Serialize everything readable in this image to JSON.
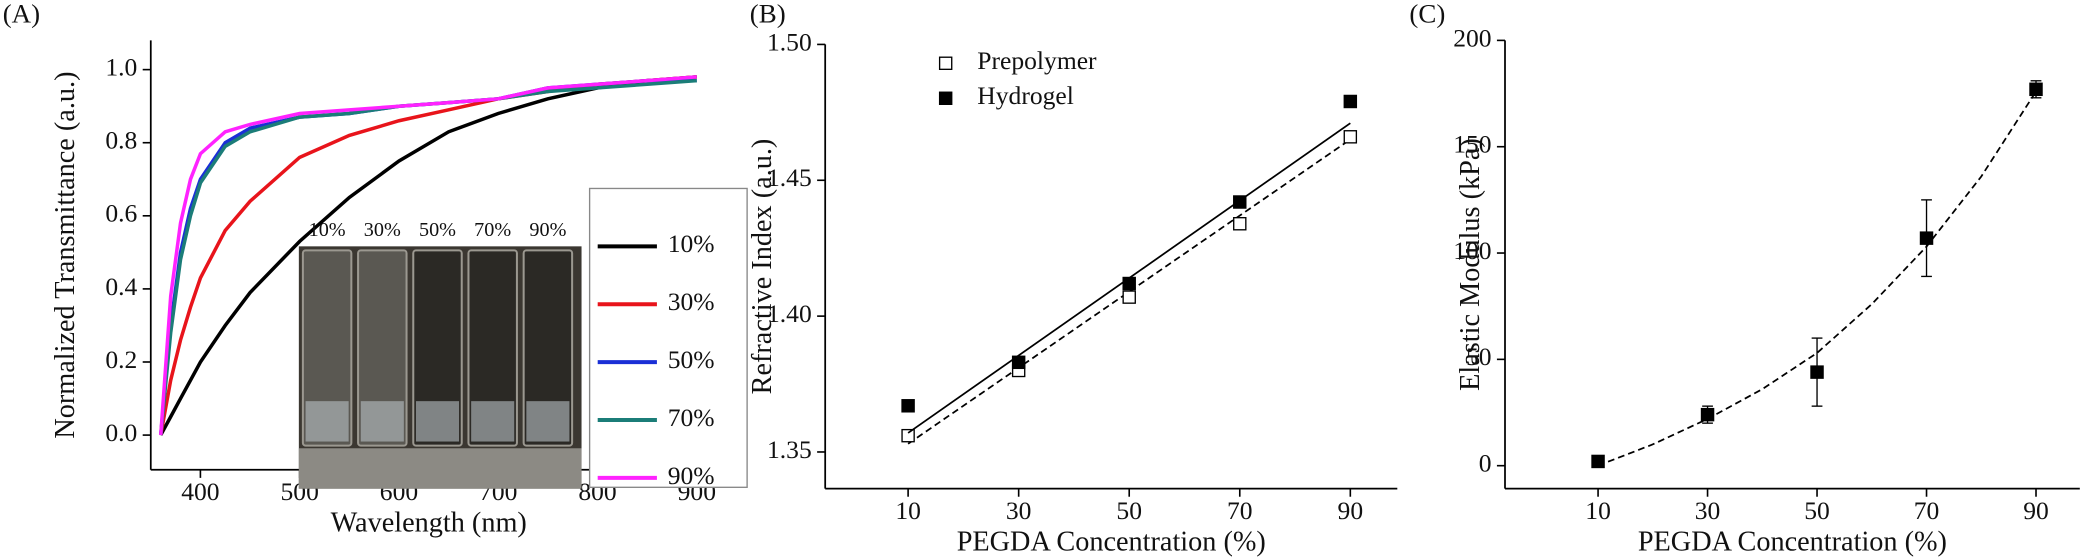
{
  "chart_data": [
    {
      "type": "line",
      "panel_label": "(A)",
      "x_label": "Wavelength (nm)",
      "y_label": "Normalized Transmittance (a.u.)",
      "x": [
        360,
        370,
        380,
        390,
        400,
        425,
        450,
        500,
        550,
        600,
        650,
        700,
        750,
        800,
        850,
        900
      ],
      "series": [
        {
          "name": "10%",
          "color": "#000000",
          "values": [
            0,
            0.05,
            0.1,
            0.15,
            0.2,
            0.3,
            0.39,
            0.53,
            0.65,
            0.75,
            0.83,
            0.88,
            0.92,
            0.95,
            0.97,
            0.98
          ]
        },
        {
          "name": "30%",
          "color": "#e8141b",
          "values": [
            0,
            0.15,
            0.26,
            0.35,
            0.43,
            0.56,
            0.64,
            0.76,
            0.82,
            0.86,
            0.89,
            0.92,
            0.94,
            0.96,
            0.97,
            0.98
          ]
        },
        {
          "name": "50%",
          "color": "#1a2fd6",
          "values": [
            0,
            0.3,
            0.5,
            0.62,
            0.7,
            0.8,
            0.84,
            0.87,
            0.88,
            0.9,
            0.91,
            0.92,
            0.95,
            0.96,
            0.97,
            0.97
          ]
        },
        {
          "name": "70%",
          "color": "#1b7d78",
          "values": [
            0,
            0.28,
            0.48,
            0.6,
            0.69,
            0.79,
            0.83,
            0.87,
            0.88,
            0.9,
            0.91,
            0.92,
            0.94,
            0.95,
            0.96,
            0.97
          ]
        },
        {
          "name": "90%",
          "color": "#ff22ff",
          "values": [
            0,
            0.38,
            0.58,
            0.7,
            0.77,
            0.83,
            0.85,
            0.88,
            0.89,
            0.9,
            0.91,
            0.92,
            0.95,
            0.96,
            0.97,
            0.98
          ]
        }
      ],
      "xlim": [
        350,
        910
      ],
      "xticks": [
        400,
        500,
        600,
        700,
        800,
        900
      ],
      "ylim": [
        -0.095,
        1.08
      ],
      "yticks": [
        {
          "value": 0,
          "label": "0.0"
        },
        0.2,
        0.4,
        0.6,
        0.8,
        {
          "value": 1,
          "label": "1.0"
        }
      ],
      "inset_labels": [
        "10%",
        "30%",
        "50%",
        "70%",
        "90%"
      ]
    },
    {
      "type": "scatter",
      "panel_label": "(B)",
      "x_label": "PEGDA Concentration (%)",
      "y_label": "Refractive Index (a.u.)",
      "x": [
        10,
        30,
        50,
        70,
        90
      ],
      "series": [
        {
          "name": "Prepolymer",
          "color": "#000000",
          "filled": false,
          "values": [
            1.356,
            1.38,
            1.407,
            1.434,
            1.466
          ],
          "fit": {
            "dash": true,
            "x": [
              10,
              90
            ],
            "values": [
              1.353,
              1.465
            ]
          }
        },
        {
          "name": "Hydrogel",
          "color": "#000000",
          "filled": true,
          "values": [
            1.367,
            1.383,
            1.412,
            1.442,
            1.479
          ],
          "fit": {
            "dash": false,
            "x": [
              10,
              90
            ],
            "values": [
              1.357,
              1.471
            ]
          }
        }
      ],
      "xlim": [
        -5,
        98.5
      ],
      "xticks": [
        10,
        30,
        50,
        70,
        90
      ],
      "ylim": [
        1.3365,
        1.5
      ],
      "yticks": [
        1.35,
        {
          "value": 1.4,
          "label": "1.40"
        },
        1.45,
        {
          "value": 1.5,
          "label": "1.50"
        }
      ],
      "legend": "upper-left"
    },
    {
      "type": "scatter",
      "panel_label": "(C)",
      "x_label": "PEGDA Concentration (%)",
      "y_label": "Elastic Modulus (kPa)",
      "x": [
        10,
        30,
        50,
        70,
        90
      ],
      "series": [
        {
          "color": "#000000",
          "filled": true,
          "values": [
            2,
            24,
            44,
            107,
            177
          ],
          "errors": [
            1,
            4,
            16,
            18,
            4
          ],
          "fit": {
            "dash": true,
            "x": [
              10,
              20,
              30,
              40,
              50,
              60,
              70,
              80,
              90
            ],
            "values": [
              0,
              10,
              22,
              36,
              53,
              76,
              103,
              136,
              176
            ]
          }
        }
      ],
      "xlim": [
        -7,
        98
      ],
      "xticks": [
        10,
        30,
        50,
        70,
        90
      ],
      "ylim": [
        -10.8,
        200
      ],
      "yticks": [
        0,
        50,
        100,
        150,
        200
      ]
    }
  ]
}
